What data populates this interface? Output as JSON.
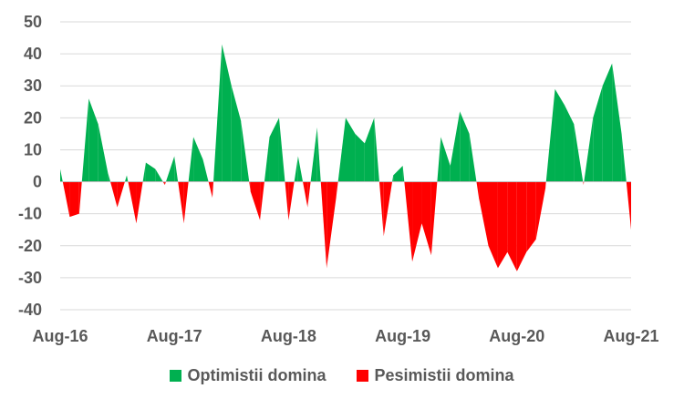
{
  "chart_data": {
    "type": "area",
    "x": [
      "Aug-16",
      "Sep-16",
      "Oct-16",
      "Nov-16",
      "Dec-16",
      "Jan-17",
      "Feb-17",
      "Mar-17",
      "Apr-17",
      "May-17",
      "Jun-17",
      "Jul-17",
      "Aug-17",
      "Sep-17",
      "Oct-17",
      "Nov-17",
      "Dec-17",
      "Jan-18",
      "Feb-18",
      "Mar-18",
      "Apr-18",
      "May-18",
      "Jun-18",
      "Jul-18",
      "Aug-18",
      "Sep-18",
      "Oct-18",
      "Nov-18",
      "Dec-18",
      "Jan-19",
      "Feb-19",
      "Mar-19",
      "Apr-19",
      "May-19",
      "Jun-19",
      "Jul-19",
      "Aug-19",
      "Sep-19",
      "Oct-19",
      "Nov-19",
      "Dec-19",
      "Jan-20",
      "Feb-20",
      "Mar-20",
      "Apr-20",
      "May-20",
      "Jun-20",
      "Jul-20",
      "Aug-20",
      "Sep-20",
      "Oct-20",
      "Nov-20",
      "Dec-20",
      "Jan-21",
      "Feb-21",
      "Mar-21",
      "Apr-21",
      "May-21",
      "Jun-21",
      "Jul-21",
      "Aug-21"
    ],
    "values": [
      4,
      -11,
      -10,
      26,
      18,
      3,
      -8,
      2,
      -13,
      6,
      4,
      -1,
      8,
      -13,
      14,
      7,
      -5,
      43,
      30,
      19,
      -3,
      -12,
      14,
      20,
      -12,
      8,
      -8,
      17,
      -27,
      -5,
      20,
      15,
      12,
      20,
      -17,
      2,
      5,
      -25,
      -13,
      -23,
      14,
      5,
      22,
      15,
      -5,
      -20,
      -27,
      -22,
      -28,
      -22,
      -18,
      -2,
      29,
      24,
      18,
      -1,
      20,
      30,
      37,
      15,
      -15
    ],
    "series": [
      {
        "name": "Optimistii domina",
        "color": "#00B050"
      },
      {
        "name": "Pesimistii domina",
        "color": "#FF0000"
      }
    ],
    "xticks": [
      "Aug-16",
      "Aug-17",
      "Aug-18",
      "Aug-19",
      "Aug-20",
      "Aug-21"
    ],
    "yticks": [
      50,
      40,
      30,
      20,
      10,
      0,
      -10,
      -20,
      -30,
      -40
    ],
    "ylim": [
      -40,
      50
    ],
    "grid": "horizontal",
    "legend_position": "bottom"
  },
  "legend": [
    {
      "label": "Optimistii domina",
      "color": "#00B050"
    },
    {
      "label": "Pesimistii domina",
      "color": "#FF0000"
    }
  ]
}
